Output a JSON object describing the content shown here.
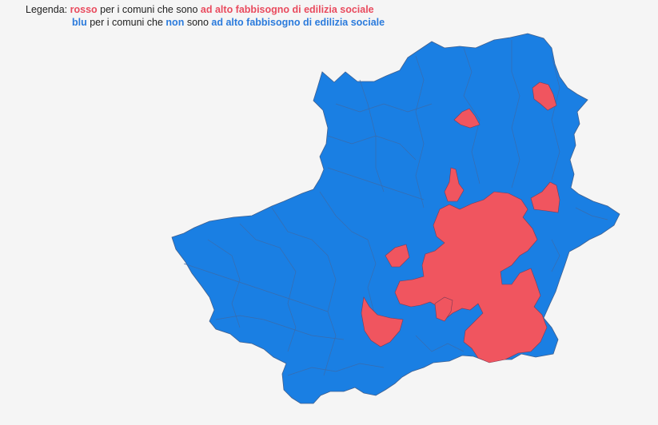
{
  "legend": {
    "prefix": "Legenda:",
    "red_word": "rosso",
    "red_text": " per i comuni che sono ",
    "red_highlight": "ad alto fabbisogno di edilizia sociale",
    "blue_word": "blu",
    "blue_text1": " per i comuni che ",
    "blue_non": "non",
    "blue_text2": " sono ",
    "blue_highlight": "ad alto fabbisogno di edilizia sociale"
  },
  "colors": {
    "high_need": "#f0555f",
    "not_high_need": "#1a7fe3",
    "border": "#4a5e80",
    "background": "#f5f5f5"
  }
}
